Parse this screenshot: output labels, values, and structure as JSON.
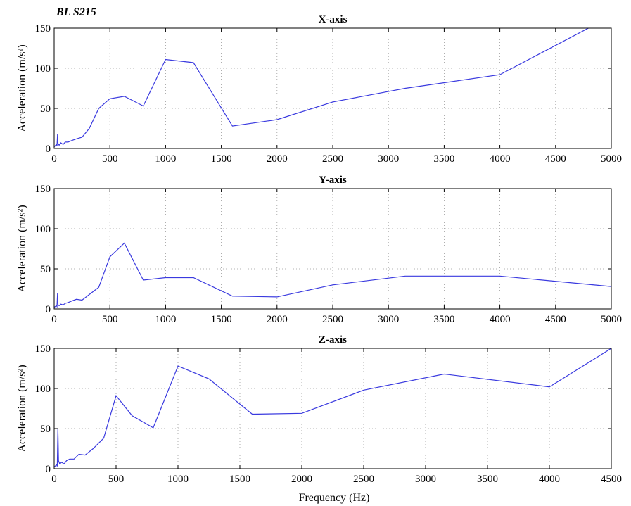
{
  "figure_tag": "BL S215",
  "xlabel": "Frequency (Hz)",
  "ylabel": "Acceleration (m/s²)",
  "chart_data": [
    {
      "type": "line",
      "title": "X-axis",
      "xlim": [
        0,
        5000
      ],
      "ylim": [
        0,
        150
      ],
      "xticks": [
        0,
        500,
        1000,
        1500,
        2000,
        2500,
        3000,
        3500,
        4000,
        4500,
        5000
      ],
      "yticks": [
        0,
        50,
        100,
        150
      ],
      "grid": true,
      "x": [
        0,
        20,
        25,
        30,
        35,
        45,
        60,
        80,
        100,
        125,
        160,
        200,
        250,
        315,
        400,
        500,
        630,
        800,
        1000,
        1250,
        1600,
        2000,
        2500,
        3150,
        4000,
        5000
      ],
      "y": [
        2,
        5,
        3,
        18,
        6,
        4,
        7,
        5,
        8,
        8,
        10,
        12,
        14,
        25,
        50,
        62,
        65,
        53,
        111,
        107,
        28,
        36,
        58,
        75,
        92,
        165
      ]
    },
    {
      "type": "line",
      "title": "Y-axis",
      "xlim": [
        0,
        5000
      ],
      "ylim": [
        0,
        150
      ],
      "xticks": [
        0,
        500,
        1000,
        1500,
        2000,
        2500,
        3000,
        3500,
        4000,
        4500,
        5000
      ],
      "yticks": [
        0,
        50,
        100,
        150
      ],
      "grid": true,
      "x": [
        0,
        20,
        25,
        30,
        35,
        45,
        60,
        80,
        100,
        125,
        160,
        200,
        250,
        315,
        400,
        500,
        630,
        800,
        1000,
        1250,
        1600,
        2000,
        2500,
        3150,
        4000,
        5000
      ],
      "y": [
        2,
        4,
        3,
        20,
        5,
        4,
        6,
        5,
        7,
        8,
        10,
        12,
        11,
        18,
        27,
        65,
        82,
        36,
        39,
        39,
        16,
        15,
        30,
        41,
        41,
        28
      ]
    },
    {
      "type": "line",
      "title": "Z-axis",
      "xlim": [
        0,
        4500
      ],
      "ylim": [
        0,
        150
      ],
      "xticks": [
        0,
        500,
        1000,
        1500,
        2000,
        2500,
        3000,
        3500,
        4000,
        4500
      ],
      "yticks": [
        0,
        50,
        100,
        150
      ],
      "grid": true,
      "x": [
        0,
        20,
        25,
        30,
        35,
        45,
        60,
        80,
        100,
        125,
        160,
        200,
        250,
        315,
        400,
        500,
        630,
        800,
        1000,
        1250,
        1600,
        2000,
        2500,
        3150,
        4000,
        4500
      ],
      "y": [
        2,
        5,
        3,
        50,
        10,
        6,
        8,
        6,
        10,
        12,
        12,
        18,
        17,
        25,
        38,
        91,
        66,
        51,
        128,
        112,
        68,
        69,
        98,
        118,
        102,
        150
      ]
    }
  ]
}
